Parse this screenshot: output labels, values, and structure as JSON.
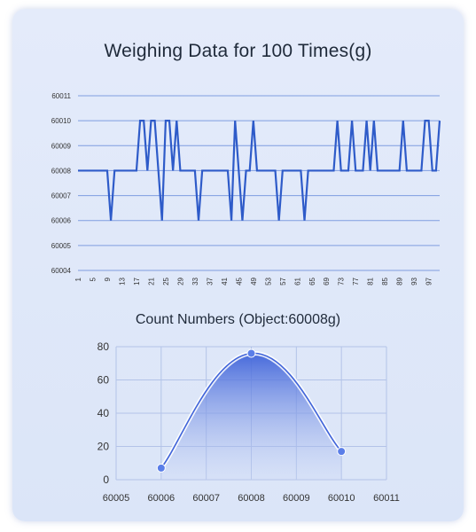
{
  "chart_data": [
    {
      "type": "line",
      "title": "Weighing Data for 100 Times(g)",
      "xlabel": "",
      "ylabel": "",
      "ylim": [
        60004,
        60011
      ],
      "yticks": [
        60004,
        60005,
        60006,
        60007,
        60008,
        60009,
        60010,
        60011
      ],
      "xticks": [
        1,
        5,
        9,
        13,
        17,
        21,
        25,
        29,
        33,
        37,
        41,
        45,
        49,
        53,
        57,
        61,
        65,
        69,
        73,
        77,
        81,
        85,
        89,
        93,
        97
      ],
      "grid": true,
      "color": "#2e5bc9",
      "series": [
        {
          "x": [
            1,
            2,
            3,
            4,
            5,
            6,
            7,
            8,
            9,
            10,
            11,
            12,
            13,
            14,
            15,
            16,
            17,
            18,
            19,
            20,
            21,
            22,
            23,
            24,
            25,
            26,
            27,
            28,
            29,
            30,
            31,
            32,
            33,
            34,
            35,
            36,
            37,
            38,
            39,
            40,
            41,
            42,
            43,
            44,
            45,
            46,
            47,
            48,
            49,
            50,
            51,
            52,
            53,
            54,
            55,
            56,
            57,
            58,
            59,
            60,
            61,
            62,
            63,
            64,
            65,
            66,
            67,
            68,
            69,
            70,
            71,
            72,
            73,
            74,
            75,
            76,
            77,
            78,
            79,
            80,
            81,
            82,
            83,
            84,
            85,
            86,
            87,
            88,
            89,
            90,
            91,
            92,
            93,
            94,
            95,
            96,
            97,
            98,
            99,
            100
          ],
          "values": [
            60008,
            60008,
            60008,
            60008,
            60008,
            60008,
            60008,
            60008,
            60008,
            60006,
            60008,
            60008,
            60008,
            60008,
            60008,
            60008,
            60008,
            60010,
            60010,
            60008,
            60010,
            60010,
            60008,
            60006,
            60010,
            60010,
            60008,
            60010,
            60008,
            60008,
            60008,
            60008,
            60008,
            60006,
            60008,
            60008,
            60008,
            60008,
            60008,
            60008,
            60008,
            60008,
            60006,
            60010,
            60008,
            60006,
            60008,
            60008,
            60010,
            60008,
            60008,
            60008,
            60008,
            60008,
            60008,
            60006,
            60008,
            60008,
            60008,
            60008,
            60008,
            60008,
            60006,
            60008,
            60008,
            60008,
            60008,
            60008,
            60008,
            60008,
            60008,
            60010,
            60008,
            60008,
            60008,
            60010,
            60008,
            60008,
            60008,
            60010,
            60008,
            60010,
            60008,
            60008,
            60008,
            60008,
            60008,
            60008,
            60008,
            60010,
            60008,
            60008,
            60008,
            60008,
            60008,
            60010,
            60010,
            60008,
            60008,
            60010
          ]
        }
      ]
    },
    {
      "type": "area",
      "title": "Count Numbers (Object:60008g)",
      "xlabel": "",
      "ylabel": "",
      "xlim": [
        60005,
        60011
      ],
      "ylim": [
        0,
        80
      ],
      "xticks": [
        60005,
        60006,
        60007,
        60008,
        60009,
        60010,
        60011
      ],
      "yticks": [
        0,
        20,
        40,
        60,
        80
      ],
      "grid": true,
      "color": "#3f63d9",
      "series": [
        {
          "x": [
            60006,
            60008,
            60010
          ],
          "values": [
            7,
            76,
            17
          ]
        }
      ]
    }
  ]
}
